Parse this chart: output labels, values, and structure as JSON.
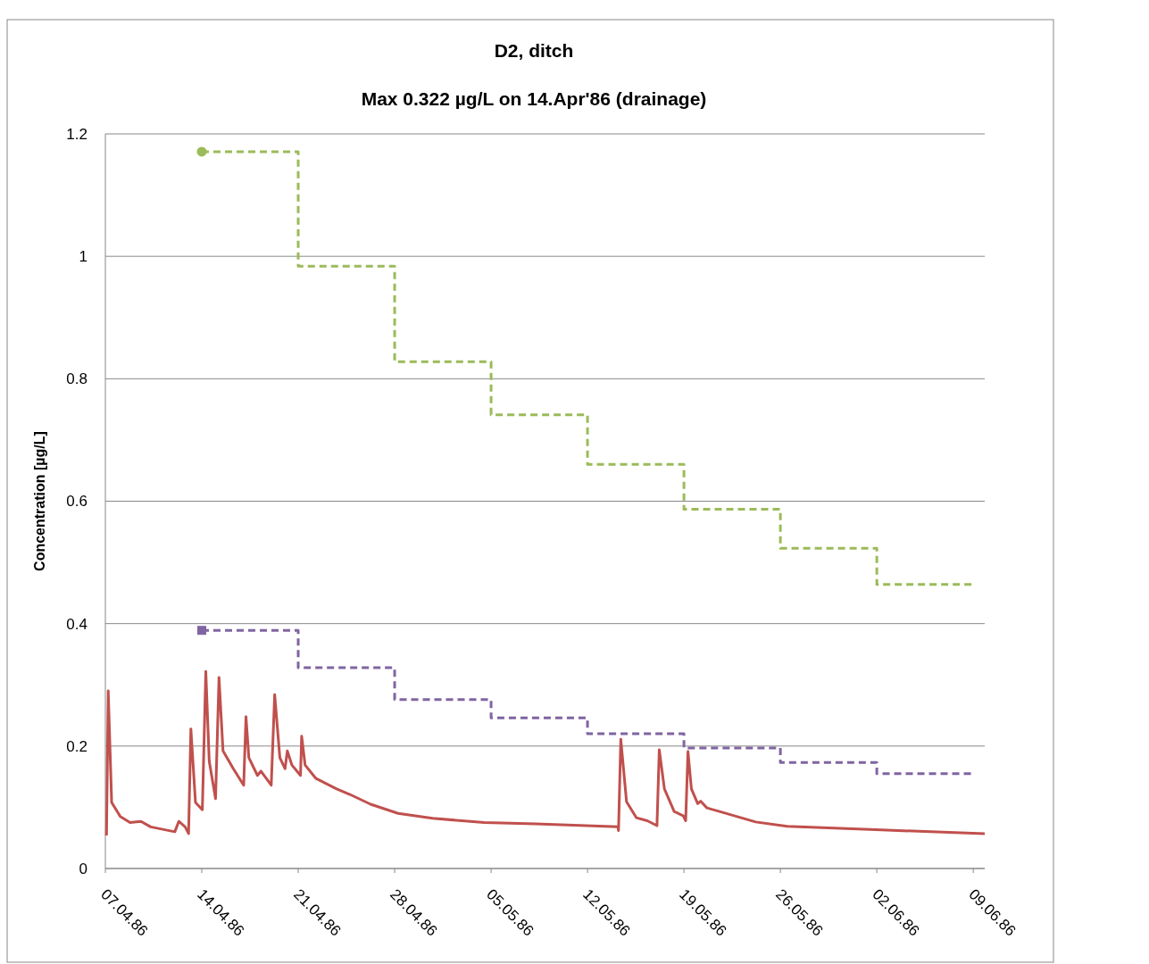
{
  "chart_data": {
    "type": "line",
    "title": "D2, ditch",
    "subtitle": "Max 0.322 µg/L on 14.Apr'86 (drainage)",
    "ylabel": "Concentration [µg/L]",
    "xlim": [
      "1986-04-07",
      "1986-06-09T20:00"
    ],
    "xticks": [
      {
        "value": "1986-04-07",
        "label": "07.04.86"
      },
      {
        "value": "1986-04-14",
        "label": "14.04.86"
      },
      {
        "value": "1986-04-21",
        "label": "21.04.86"
      },
      {
        "value": "1986-04-28",
        "label": "28.04.86"
      },
      {
        "value": "1986-05-05",
        "label": "05.05.86"
      },
      {
        "value": "1986-05-12",
        "label": "12.05.86"
      },
      {
        "value": "1986-05-19",
        "label": "19.05.86"
      },
      {
        "value": "1986-05-26",
        "label": "26.05.86"
      },
      {
        "value": "1986-06-02",
        "label": "02.06.86"
      },
      {
        "value": "1986-06-09",
        "label": "09.06.86"
      }
    ],
    "ylim": [
      0,
      1.2
    ],
    "yticks": [
      0,
      0.2,
      0.4,
      0.6,
      0.8,
      1,
      1.2
    ],
    "grid": "y",
    "series": [
      {
        "color": "#c0504d",
        "line_style": "solid",
        "x": [
          "1986-04-07T02:00",
          "1986-04-07T05:00",
          "1986-04-07T11:00",
          "1986-04-08T02:00",
          "1986-04-08T19:00",
          "1986-04-09T14:00",
          "1986-04-10T07:00",
          "1986-04-12T01:00",
          "1986-04-12T08:00",
          "1986-04-12T19:00",
          "1986-04-13T01:00",
          "1986-04-13T05:00",
          "1986-04-13T13:00",
          "1986-04-14T01:00",
          "1986-04-14T07:00",
          "1986-04-14T13:00",
          "1986-04-15T00:00",
          "1986-04-15T06:00",
          "1986-04-15T13:00",
          "1986-04-16T07:00",
          "1986-04-17T01:00",
          "1986-04-17T05:00",
          "1986-04-17T10:00",
          "1986-04-18T01:00",
          "1986-04-18T07:00",
          "1986-04-19T01:00",
          "1986-04-19T07:00",
          "1986-04-19T16:00",
          "1986-04-20T01:00",
          "1986-04-20T05:00",
          "1986-04-20T13:00",
          "1986-04-21T04:00",
          "1986-04-21T06:00",
          "1986-04-21T12:00",
          "1986-04-22T07:00",
          "1986-04-23T19:00",
          "1986-04-24T18:00",
          "1986-04-26T06:00",
          "1986-04-28T06:00",
          "1986-04-30T18:00",
          "1986-05-04T12:00",
          "1986-05-08T06:00",
          "1986-05-14T05:00",
          "1986-05-14T06:00",
          "1986-05-14T10:00",
          "1986-05-14T20:00",
          "1986-05-15T13:00",
          "1986-05-16T08:00",
          "1986-05-17T01:00",
          "1986-05-17T05:00",
          "1986-05-17T14:00",
          "1986-05-18T07:00",
          "1986-05-18T23:00",
          "1986-05-19T03:00",
          "1986-05-19T07:00",
          "1986-05-19T13:00",
          "1986-05-20T00:00",
          "1986-05-20T05:00",
          "1986-05-20T16:00",
          "1986-05-21T22:00",
          "1986-05-24T05:00",
          "1986-05-26T12:00",
          "1986-06-02T08:00",
          "1986-06-09T20:00"
        ],
        "values": [
          0.054,
          0.29,
          0.108,
          0.085,
          0.075,
          0.077,
          0.068,
          0.06,
          0.077,
          0.068,
          0.057,
          0.228,
          0.108,
          0.096,
          0.322,
          0.175,
          0.114,
          0.312,
          0.192,
          0.163,
          0.136,
          0.248,
          0.181,
          0.152,
          0.159,
          0.136,
          0.284,
          0.181,
          0.163,
          0.192,
          0.169,
          0.152,
          0.216,
          0.169,
          0.147,
          0.13,
          0.121,
          0.105,
          0.09,
          0.082,
          0.075,
          0.073,
          0.068,
          0.062,
          0.211,
          0.109,
          0.083,
          0.078,
          0.07,
          0.194,
          0.13,
          0.093,
          0.086,
          0.078,
          0.191,
          0.13,
          0.106,
          0.11,
          0.099,
          0.091,
          0.076,
          0.069,
          0.063,
          0.057
        ]
      },
      {
        "type": "step",
        "color": "#9bbb59",
        "line_style": "dashed",
        "x": [
          "1986-04-14",
          "1986-04-21",
          "1986-04-28",
          "1986-05-05",
          "1986-05-12",
          "1986-05-19",
          "1986-05-26",
          "1986-06-02",
          "1986-06-09"
        ],
        "values": [
          1.171,
          0.984,
          0.828,
          0.741,
          0.66,
          0.587,
          0.523,
          0.464,
          0.464
        ]
      },
      {
        "type": "step",
        "color": "#8064a2",
        "line_style": "dashed",
        "x": [
          "1986-04-14",
          "1986-04-21",
          "1986-04-28",
          "1986-05-05",
          "1986-05-12",
          "1986-05-19",
          "1986-05-26",
          "1986-06-02",
          "1986-06-09"
        ],
        "values": [
          0.389,
          0.328,
          0.276,
          0.246,
          0.22,
          0.197,
          0.173,
          0.155,
          0.155
        ]
      },
      {
        "type": "scatter",
        "color": "#9bbb59",
        "marker": "circle",
        "x": [
          "1986-04-14"
        ],
        "values": [
          1.171
        ]
      },
      {
        "type": "scatter",
        "color": "#8064a2",
        "marker": "square",
        "x": [
          "1986-04-14"
        ],
        "values": [
          0.389
        ]
      }
    ]
  }
}
